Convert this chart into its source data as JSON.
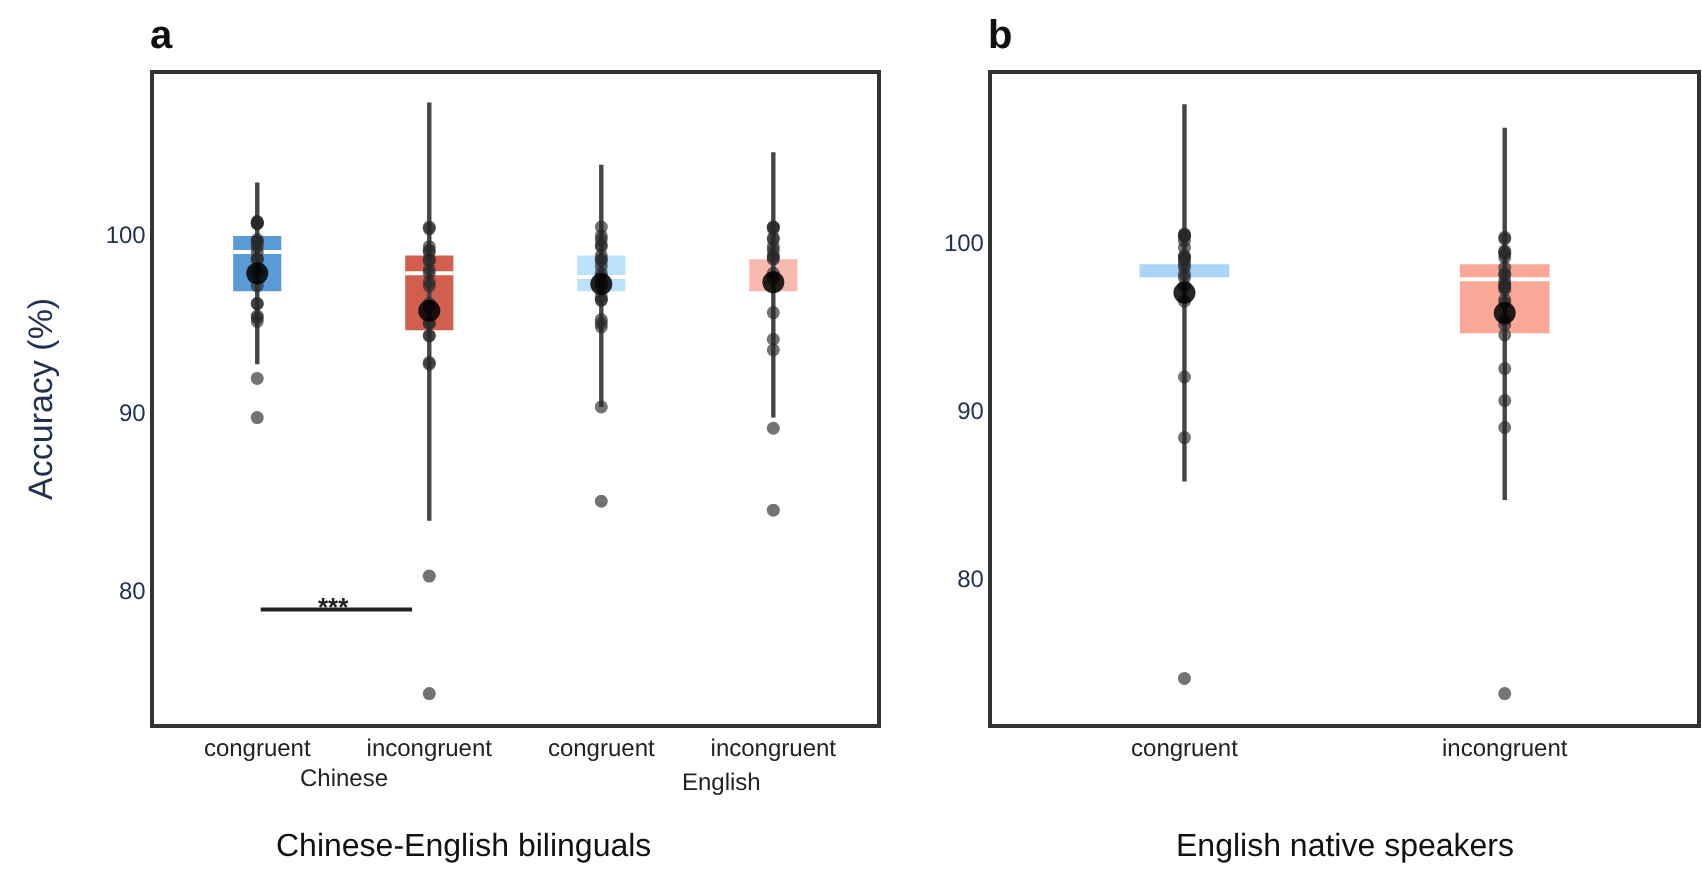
{
  "chart_data": [
    {
      "type": "box",
      "title": "a",
      "ylabel": "Accuracy (%)",
      "xlabel": "Chinese-English bilinguals",
      "categories": [
        "congruent",
        "incongruent",
        "congruent",
        "incongruent"
      ],
      "ylim": [
        72.5,
        109
      ],
      "yticks": [
        80,
        90,
        100
      ],
      "marker": "circle",
      "annotations": [
        "Chinese",
        "English",
        "***"
      ],
      "colors": [
        "#5b9bd5",
        "#d0604d",
        "#bde0fb",
        "#f8b9b0"
      ],
      "boxes": [
        {
          "low": 92.7,
          "q1": 96.8,
          "median": 99.0,
          "q3": 99.9,
          "high": 102.9,
          "mean": 97.8,
          "outliers": [
            100.7,
            100.7,
            100.6,
            100.6,
            100.6,
            99.7,
            99.5,
            99.6,
            99.3,
            99.0,
            98.6,
            98.6,
            97.9,
            97.1,
            96.1,
            96.1,
            95.4,
            95.3,
            95.1,
            91.9,
            89.7
          ]
        },
        {
          "low": 83.9,
          "q1": 94.6,
          "median": 97.8,
          "q3": 98.8,
          "high": 107.4,
          "mean": 95.7,
          "outliers": [
            100.4,
            100.3,
            99.3,
            99.1,
            99.0,
            98.6,
            98.5,
            98.0,
            97.8,
            97.3,
            97.1,
            96.1,
            95.9,
            95.0,
            95.0,
            94.3,
            94.3,
            92.8,
            92.7,
            80.8,
            74.2
          ]
        },
        {
          "low": 90.3,
          "q1": 96.8,
          "median": 97.6,
          "q3": 98.8,
          "high": 103.9,
          "mean": 97.2,
          "outliers": [
            100.4,
            99.9,
            99.7,
            99.4,
            99.3,
            98.8,
            98.6,
            98.5,
            98.2,
            97.8,
            97.6,
            97.3,
            97.1,
            96.5,
            96.3,
            96.3,
            95.2,
            95.0,
            94.8,
            90.3,
            85.0
          ]
        },
        {
          "low": 89.7,
          "q1": 96.8,
          "median": 98.7,
          "q3": 98.7,
          "high": 104.6,
          "mean": 97.3,
          "outliers": [
            100.4,
            100.4,
            100.3,
            99.8,
            99.7,
            99.3,
            99.1,
            98.8,
            98.7,
            98.6,
            97.8,
            97.5,
            95.6,
            94.1,
            93.5,
            89.1,
            84.5
          ]
        }
      ]
    },
    {
      "type": "box",
      "title": "b",
      "xlabel": "English native speakers",
      "categories": [
        "congruent",
        "incongruent"
      ],
      "ylim": [
        71.4,
        110
      ],
      "yticks": [
        80,
        90,
        100
      ],
      "marker": "circle",
      "colors": [
        "#a9d5f8",
        "#f9a898"
      ],
      "boxes": [
        {
          "low": 85.8,
          "q1": 97.8,
          "median": 97.8,
          "q3": 98.7,
          "high": 108.2,
          "mean": 97.0,
          "outliers": [
            100.4,
            100.4,
            100.4,
            100.5,
            100.4,
            100.1,
            99.7,
            99.2,
            99.1,
            99.1,
            98.9,
            98.7,
            98.5,
            98.1,
            97.9,
            97.4,
            96.5,
            92.0,
            88.4,
            74.1
          ]
        },
        {
          "low": 84.7,
          "q1": 94.6,
          "median": 97.8,
          "q3": 98.7,
          "high": 106.8,
          "mean": 95.8,
          "outliers": [
            100.3,
            100.2,
            99.5,
            99.4,
            99.3,
            99.1,
            98.5,
            98.1,
            98.1,
            97.7,
            97.5,
            97.4,
            97.3,
            97.2,
            96.6,
            96.4,
            95.4,
            95.1,
            94.5,
            92.5,
            90.6,
            89.0,
            73.2
          ]
        }
      ]
    }
  ]
}
